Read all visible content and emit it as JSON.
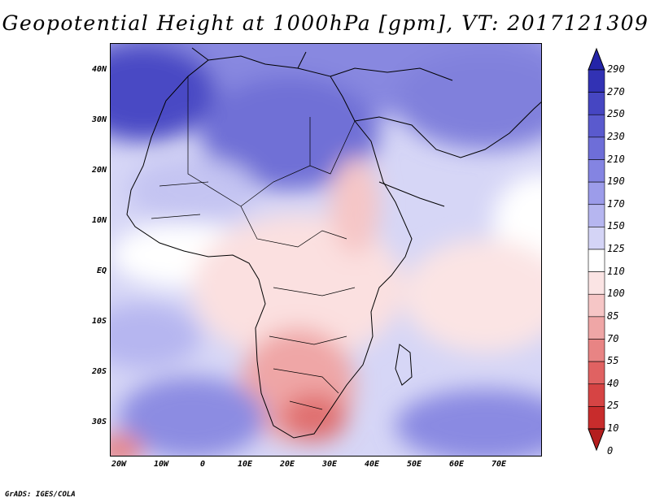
{
  "title": "Geopotential Height at 1000hPa [gpm], VT: 2017121309",
  "credit": "GrADS: IGES/COLA",
  "lat_labels": [
    "40N",
    "30N",
    "20N",
    "10N",
    "EQ",
    "10S",
    "20S",
    "30S"
  ],
  "lon_labels": [
    "20W",
    "10W",
    "0",
    "10E",
    "20E",
    "30E",
    "40E",
    "50E",
    "60E",
    "70E"
  ],
  "colorbar": {
    "labels": [
      "290",
      "270",
      "250",
      "230",
      "210",
      "190",
      "170",
      "150",
      "125",
      "110",
      "100",
      "85",
      "70",
      "55",
      "40",
      "25",
      "10",
      "0"
    ],
    "colors": [
      "#2424a8",
      "#3232b4",
      "#4646c2",
      "#5a5ace",
      "#6e6ed8",
      "#8484e2",
      "#9c9cea",
      "#b6b6f0",
      "#d4d4f6",
      "#ffffff",
      "#fbe4e4",
      "#f6c6c6",
      "#efa6a6",
      "#e88484",
      "#e06262",
      "#d64444",
      "#c82c2c",
      "#b41e1e"
    ]
  }
}
